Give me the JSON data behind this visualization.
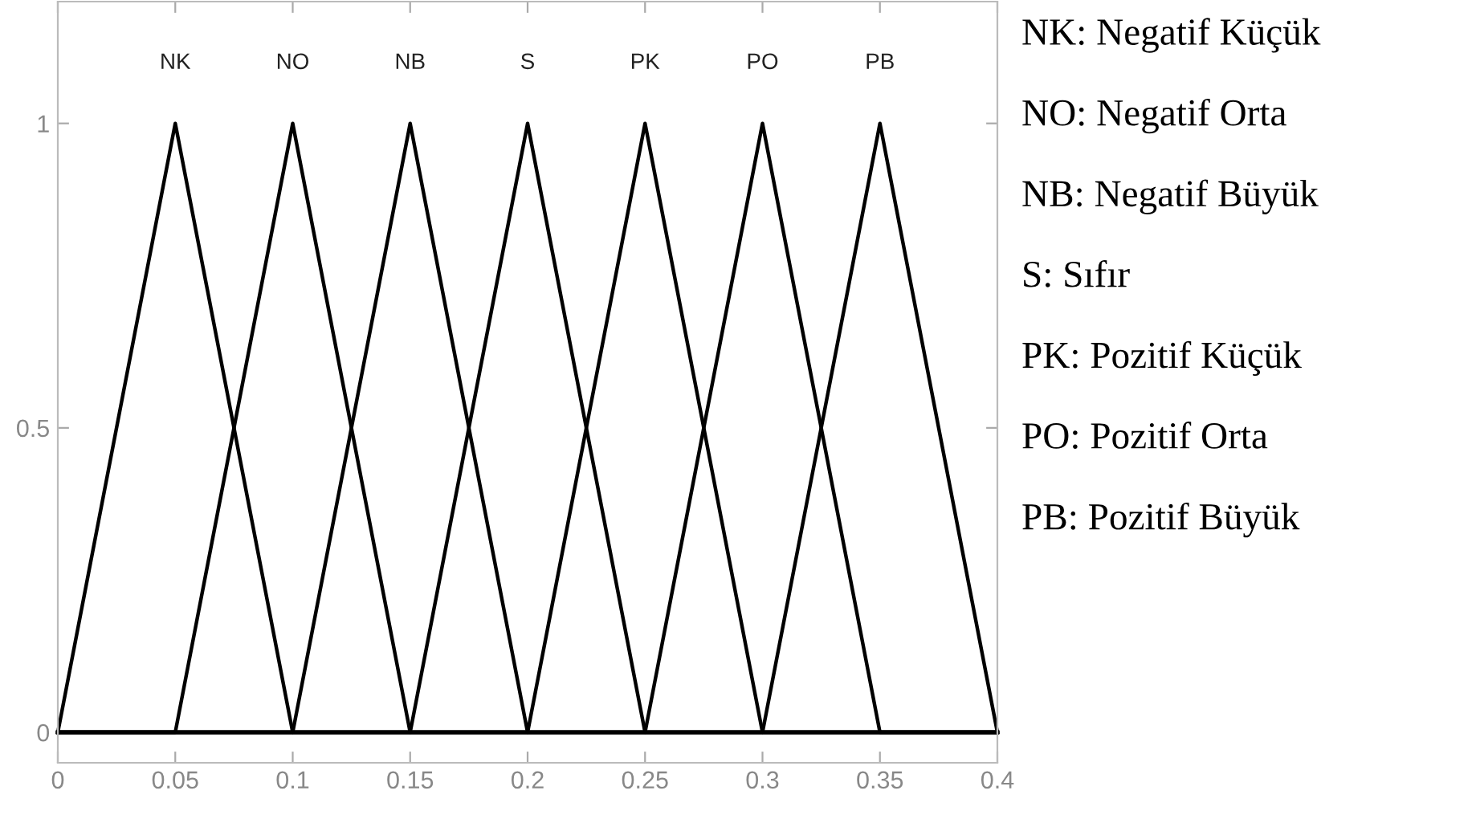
{
  "chart_data": {
    "type": "line",
    "xlim": [
      0,
      0.4
    ],
    "ylim": [
      -0.05,
      1.2
    ],
    "xticks": [
      0,
      0.05,
      0.1,
      0.15,
      0.2,
      0.25,
      0.3,
      0.35,
      0.4
    ],
    "yticks": [
      0,
      0.5,
      1
    ],
    "grid": false,
    "legend": false,
    "marker": "none",
    "line_style": "solid",
    "series": [
      {
        "name": "NK",
        "color": "#000000",
        "x": [
          0,
          0.05,
          0.1,
          0.4
        ],
        "values": [
          0,
          1,
          0,
          0
        ]
      },
      {
        "name": "NO",
        "color": "#000000",
        "x": [
          0,
          0.05,
          0.1,
          0.15,
          0.4
        ],
        "values": [
          0,
          0,
          1,
          0,
          0
        ]
      },
      {
        "name": "NB",
        "color": "#000000",
        "x": [
          0,
          0.1,
          0.15,
          0.2,
          0.4
        ],
        "values": [
          0,
          0,
          1,
          0,
          0
        ]
      },
      {
        "name": "S",
        "color": "#000000",
        "x": [
          0,
          0.15,
          0.2,
          0.25,
          0.4
        ],
        "values": [
          0,
          0,
          1,
          0,
          0
        ]
      },
      {
        "name": "PK",
        "color": "#000000",
        "x": [
          0,
          0.2,
          0.25,
          0.3,
          0.4
        ],
        "values": [
          0,
          0,
          1,
          0,
          0
        ]
      },
      {
        "name": "PO",
        "color": "#000000",
        "x": [
          0,
          0.25,
          0.3,
          0.35,
          0.4
        ],
        "values": [
          0,
          0,
          1,
          0,
          0
        ]
      },
      {
        "name": "PB",
        "color": "#000000",
        "x": [
          0,
          0.3,
          0.35,
          0.4
        ],
        "values": [
          0,
          0,
          1,
          0
        ]
      }
    ],
    "annotations": [
      "NK: Negatif Küçük",
      "NO: Negatif Orta",
      "NB: Negatif Büyük",
      "S: Sıfır",
      "PK: Pozitif Küçük",
      "PO: Pozitif Orta",
      "PB: Pozitif Büyük"
    ]
  }
}
